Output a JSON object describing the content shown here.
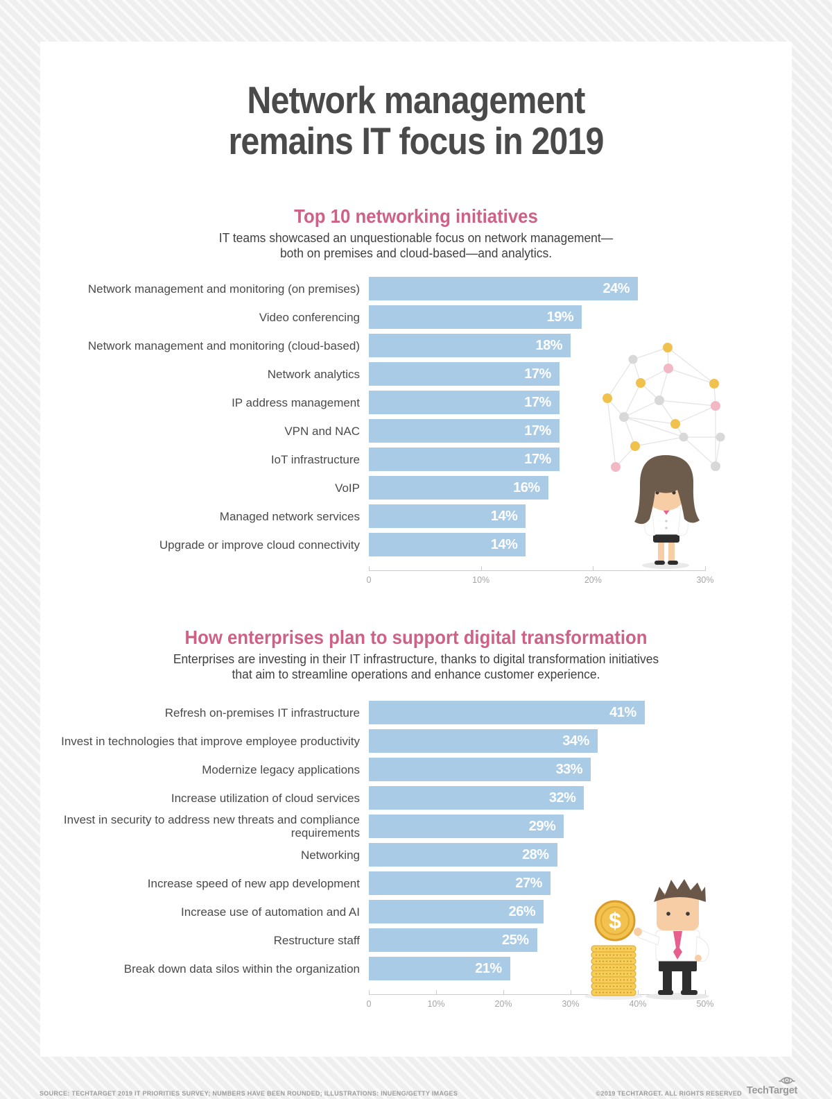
{
  "header": {
    "title": "Network management\nremains IT focus in 2019"
  },
  "theme": {
    "accent_pink": "#cf6184",
    "bar_blue": "#a9cbe6",
    "title_gray": "#4a4a4a",
    "axis_gray": "#a5a5a5"
  },
  "chart_data": [
    {
      "type": "bar",
      "orientation": "horizontal",
      "title": "Top 10 networking initiatives",
      "subtitle": "IT teams showcased an unquestionable focus on network management—\nboth on premises and cloud-based—and analytics.",
      "categories": [
        "Network management and monitoring (on premises)",
        "Video conferencing",
        "Network management and monitoring (cloud-based)",
        "Network analytics",
        "IP address management",
        "VPN and NAC",
        "IoT infrastructure",
        "VoIP",
        "Managed network services",
        "Upgrade or improve cloud connectivity"
      ],
      "values": [
        24,
        19,
        18,
        17,
        17,
        17,
        17,
        16,
        14,
        14
      ],
      "unit": "%",
      "xlim": [
        0,
        30
      ],
      "x_ticks": [
        "0",
        "10%",
        "20%",
        "30%"
      ],
      "grid": false,
      "legend": "none",
      "bar_color": "#a9cbe6",
      "value_label_color": "#ffffff"
    },
    {
      "type": "bar",
      "orientation": "horizontal",
      "title": "How enterprises plan to support digital transformation",
      "subtitle": "Enterprises are investing in their IT infrastructure, thanks to digital transformation initiatives\nthat aim to streamline operations and enhance customer experience.",
      "categories": [
        "Refresh on-premises IT infrastructure",
        "Invest in technologies that improve employee productivity",
        "Modernize legacy applications",
        "Increase utilization of cloud services",
        "Invest in security to address new threats and compliance requirements",
        "Networking",
        "Increase speed of new app development",
        "Increase use of automation and AI",
        "Restructure staff",
        "Break down data silos within the organization"
      ],
      "values": [
        41,
        34,
        33,
        32,
        29,
        28,
        27,
        26,
        25,
        21
      ],
      "unit": "%",
      "xlim": [
        0,
        50
      ],
      "x_ticks": [
        "0",
        "10%",
        "20%",
        "30%",
        "40%",
        "50%"
      ],
      "grid": false,
      "legend": "none",
      "bar_color": "#a9cbe6",
      "value_label_color": "#ffffff"
    }
  ],
  "illustrations": [
    {
      "name": "network-nodes-with-businesswoman",
      "node_colors": [
        "#f0c24d",
        "#f2b8c6",
        "#d8d8d8"
      ]
    },
    {
      "name": "businessman-with-dollar-coin-and-coin-stack",
      "coin_color": "#f3c14d"
    }
  ],
  "footer": {
    "source": "SOURCE: TECHTARGET 2019 IT PRIORITIES SURVEY; NUMBERS HAVE BEEN ROUNDED; ILLUSTRATIONS: INUENG/GETTY IMAGES",
    "copyright": "©2019 TECHTARGET. ALL RIGHTS RESERVED",
    "logo_text": "TechTarget"
  }
}
